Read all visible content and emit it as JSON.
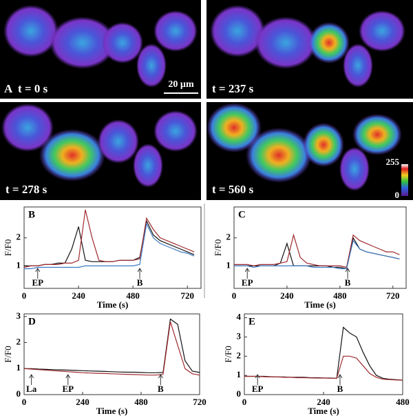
{
  "panel_a": {
    "label": "A",
    "frames": [
      {
        "time": "t = 0 s"
      },
      {
        "time": "t = 237 s"
      },
      {
        "time": "t = 278 s"
      },
      {
        "time": "t = 560 s"
      }
    ],
    "scale_bar": "20 µm",
    "colorbar_ticks": [
      0,
      255
    ]
  },
  "chart_data": [
    {
      "type": "line",
      "panel": "B",
      "ylabel": "F/F0",
      "xlabel": "Time (s)",
      "xlim": [
        0,
        780
      ],
      "xticks": [
        0,
        240,
        480,
        720
      ],
      "ylim": [
        0.2,
        3.1
      ],
      "yticks": [
        1,
        2
      ],
      "annotations": [
        {
          "text": "EP",
          "x": 60
        },
        {
          "text": "B",
          "x": 510
        }
      ],
      "x": [
        0,
        30,
        60,
        90,
        120,
        150,
        180,
        210,
        240,
        270,
        300,
        330,
        360,
        390,
        420,
        450,
        480,
        510,
        540,
        570,
        600,
        630,
        660,
        690,
        720,
        750
      ],
      "series": [
        {
          "color": "#111111",
          "values": [
            1.0,
            1.0,
            1.0,
            1.05,
            1.05,
            1.1,
            1.1,
            1.6,
            2.4,
            1.2,
            1.15,
            1.15,
            1.15,
            1.15,
            1.2,
            1.2,
            1.2,
            1.3,
            2.6,
            2.1,
            1.9,
            1.8,
            1.7,
            1.6,
            1.5,
            1.4
          ]
        },
        {
          "color": "#a0282d",
          "values": [
            0.95,
            1.0,
            1.0,
            1.05,
            1.05,
            1.05,
            1.1,
            1.1,
            1.2,
            3.0,
            2.0,
            1.2,
            1.15,
            1.15,
            1.2,
            1.2,
            1.2,
            1.25,
            2.7,
            2.3,
            2.0,
            1.9,
            1.8,
            1.7,
            1.6,
            1.5
          ]
        },
        {
          "color": "#3b78c2",
          "values": [
            0.9,
            0.9,
            0.95,
            0.95,
            0.95,
            0.95,
            0.95,
            0.95,
            0.95,
            1.0,
            1.0,
            1.0,
            1.0,
            1.0,
            1.0,
            1.0,
            1.0,
            1.05,
            2.5,
            2.0,
            1.8,
            1.7,
            1.6,
            1.5,
            1.45,
            1.35
          ]
        }
      ]
    },
    {
      "type": "line",
      "panel": "C",
      "ylabel": "F/F0",
      "xlabel": "Time (s)",
      "xlim": [
        0,
        780
      ],
      "xticks": [
        0,
        240,
        480,
        720
      ],
      "ylim": [
        0.2,
        3.1
      ],
      "yticks": [
        1,
        2
      ],
      "annotations": [
        {
          "text": "EP",
          "x": 60
        },
        {
          "text": "B",
          "x": 515
        }
      ],
      "x": [
        0,
        30,
        60,
        90,
        120,
        150,
        180,
        210,
        240,
        270,
        300,
        330,
        360,
        390,
        420,
        450,
        480,
        510,
        540,
        570,
        600,
        630,
        660,
        690,
        720,
        750
      ],
      "series": [
        {
          "color": "#111111",
          "values": [
            1.0,
            1.0,
            1.0,
            1.0,
            1.0,
            1.0,
            1.0,
            1.1,
            1.8,
            1.0,
            1.0,
            1.0,
            1.0,
            1.0,
            1.0,
            0.95,
            0.95,
            0.9,
            2.0,
            1.6,
            1.5,
            1.45,
            1.4,
            1.35,
            1.3,
            1.25
          ]
        },
        {
          "color": "#a0282d",
          "values": [
            1.05,
            1.05,
            1.05,
            1.0,
            1.05,
            1.05,
            1.05,
            1.1,
            1.15,
            2.1,
            1.3,
            1.1,
            1.05,
            1.0,
            1.0,
            1.0,
            1.0,
            0.95,
            2.1,
            1.9,
            1.8,
            1.7,
            1.6,
            1.5,
            1.5,
            1.4
          ]
        },
        {
          "color": "#3b78c2",
          "values": [
            1.0,
            1.0,
            1.0,
            0.95,
            1.0,
            1.0,
            1.0,
            1.0,
            1.0,
            1.0,
            1.0,
            1.0,
            0.95,
            0.95,
            0.95,
            0.95,
            0.9,
            0.9,
            1.9,
            1.6,
            1.5,
            1.45,
            1.4,
            1.35,
            1.3,
            1.25
          ]
        }
      ]
    },
    {
      "type": "line",
      "panel": "D",
      "ylabel": "F/F0",
      "xlabel": "Time (s)",
      "xlim": [
        0,
        720
      ],
      "xticks": [
        0,
        240,
        480,
        720
      ],
      "ylim": [
        0,
        3.1
      ],
      "yticks": [
        0,
        1,
        2,
        3
      ],
      "annotations": [
        {
          "text": "La",
          "x": 30
        },
        {
          "text": "EP",
          "x": 180
        },
        {
          "text": "B",
          "x": 560
        }
      ],
      "x": [
        0,
        30,
        60,
        90,
        120,
        150,
        180,
        210,
        240,
        270,
        300,
        330,
        360,
        390,
        420,
        450,
        480,
        510,
        540,
        570,
        600,
        630,
        660,
        690,
        720
      ],
      "series": [
        {
          "color": "#111111",
          "values": [
            1.0,
            1.0,
            0.98,
            0.97,
            0.96,
            0.95,
            0.94,
            0.93,
            0.92,
            0.91,
            0.9,
            0.89,
            0.88,
            0.87,
            0.86,
            0.86,
            0.85,
            0.84,
            0.84,
            0.85,
            2.9,
            2.7,
            1.3,
            0.9,
            0.85
          ]
        },
        {
          "color": "#a0282d",
          "values": [
            1.0,
            0.98,
            0.96,
            0.94,
            0.92,
            0.9,
            0.88,
            0.86,
            0.84,
            0.83,
            0.82,
            0.81,
            0.8,
            0.79,
            0.78,
            0.77,
            0.76,
            0.75,
            0.75,
            0.78,
            2.8,
            1.9,
            1.0,
            0.8,
            0.75
          ]
        }
      ]
    },
    {
      "type": "line",
      "panel": "E",
      "ylabel": "F/F0",
      "xlabel": "Time (s)",
      "xlim": [
        0,
        480
      ],
      "xticks": [
        0,
        240,
        480
      ],
      "ylim": [
        0,
        4.2
      ],
      "yticks": [
        0,
        1,
        2,
        3,
        4
      ],
      "annotations": [
        {
          "text": "EP",
          "x": 40
        },
        {
          "text": "B",
          "x": 290
        }
      ],
      "x": [
        0,
        20,
        40,
        60,
        80,
        100,
        120,
        140,
        160,
        180,
        200,
        220,
        240,
        260,
        280,
        300,
        320,
        340,
        360,
        380,
        400,
        420,
        440,
        460,
        480
      ],
      "series": [
        {
          "color": "#111111",
          "values": [
            0.95,
            0.95,
            0.95,
            0.95,
            0.93,
            0.92,
            0.92,
            0.9,
            0.9,
            0.9,
            0.88,
            0.88,
            0.87,
            0.86,
            0.85,
            3.5,
            3.2,
            3.0,
            2.2,
            1.5,
            1.0,
            0.85,
            0.8,
            0.78,
            0.75
          ]
        },
        {
          "color": "#a0282d",
          "values": [
            0.95,
            0.95,
            0.95,
            0.93,
            0.92,
            0.92,
            0.9,
            0.9,
            0.88,
            0.88,
            0.87,
            0.86,
            0.86,
            0.85,
            0.85,
            2.0,
            2.0,
            1.9,
            1.5,
            1.1,
            0.9,
            0.8,
            0.78,
            0.76,
            0.75
          ]
        }
      ]
    }
  ]
}
